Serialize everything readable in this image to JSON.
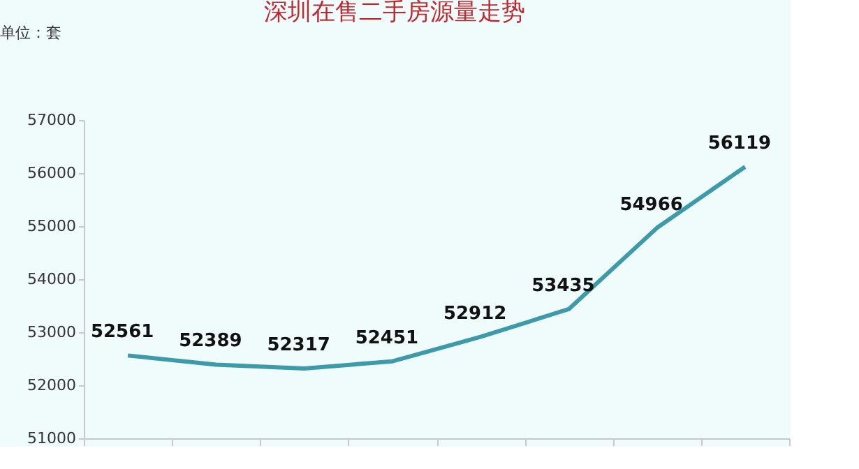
{
  "chart_data": {
    "type": "line",
    "title": "深圳在售二手房源量走势",
    "annotations": [
      "单位：套"
    ],
    "categories": [
      null,
      null,
      null,
      null,
      null,
      null,
      null,
      null
    ],
    "series": [
      {
        "color": "#3d9aa8",
        "values": [
          52561,
          52389,
          52317,
          52451,
          52912,
          53435,
          54966,
          56119
        ]
      }
    ],
    "ylim": [
      51000,
      57000
    ],
    "yticks": [
      51000,
      52000,
      53000,
      54000,
      55000,
      56000,
      57000
    ],
    "data_labels": true,
    "grid": false,
    "marker": "none",
    "line_style": "solid"
  }
}
